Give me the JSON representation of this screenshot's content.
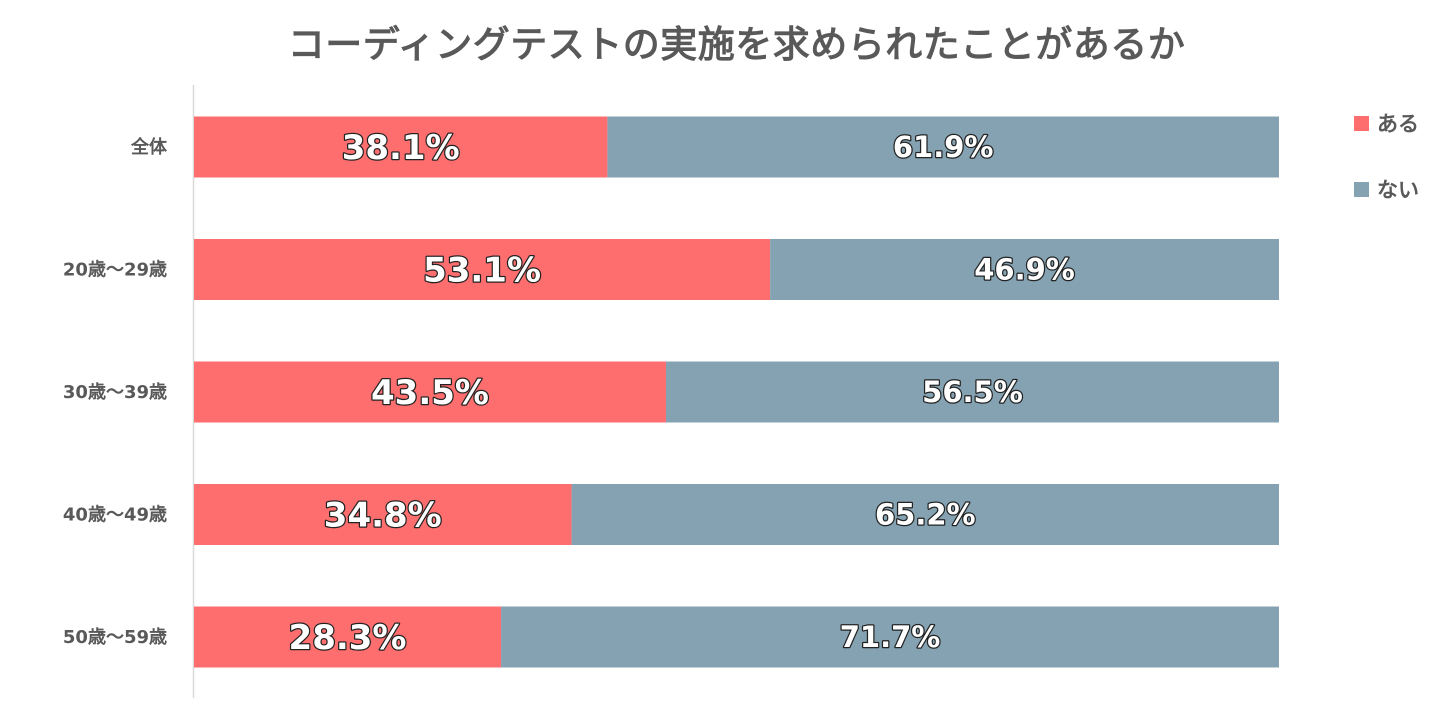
{
  "chart_data": {
    "type": "bar",
    "orientation": "horizontal",
    "stacked": "percent",
    "title": "コーディングテストの実施を求められたことがあるか",
    "categories": [
      "全体",
      "20歳～29歳",
      "30歳～39歳",
      "40歳～49歳",
      "50歳～59歳"
    ],
    "series": [
      {
        "name": "ある",
        "color": "#ff6e6e",
        "values": [
          38.1,
          53.1,
          43.5,
          34.8,
          28.3
        ],
        "labels": [
          "38.1%",
          "53.1%",
          "43.5%",
          "34.8%",
          "28.3%"
        ]
      },
      {
        "name": "ない",
        "color": "#84a2b2",
        "values": [
          61.9,
          46.9,
          56.5,
          65.2,
          71.7
        ],
        "labels": [
          "61.9%",
          "46.9%",
          "56.5%",
          "65.2%",
          "71.7%"
        ]
      }
    ],
    "xlim": [
      0,
      100
    ],
    "grid": false,
    "legend_position": "top-right"
  }
}
